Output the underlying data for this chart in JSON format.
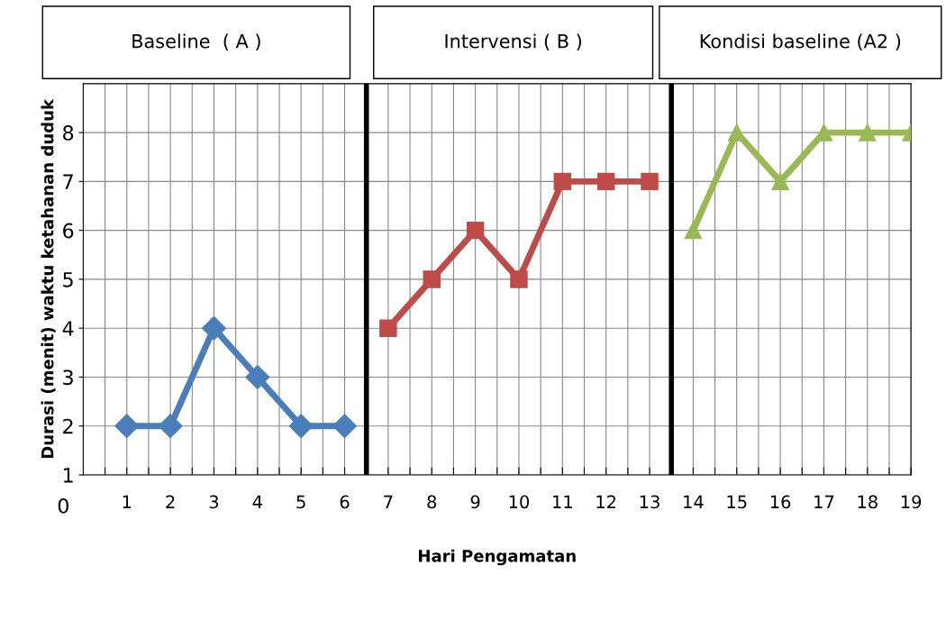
{
  "chart_data": {
    "type": "line",
    "xlabel": "Hari Pengamatan",
    "ylabel": "Durasi (menit) waktu ketahanan duduk",
    "series": [
      {
        "color": "#4a7ebb",
        "marker": "diamond",
        "x": [
          1,
          2,
          3,
          4,
          5,
          6
        ],
        "values": [
          2,
          2,
          4,
          3,
          2,
          2
        ]
      },
      {
        "color": "#be4b48",
        "marker": "square",
        "x": [
          7,
          8,
          9,
          10,
          11,
          12,
          13
        ],
        "values": [
          4,
          5,
          6,
          5,
          7,
          7,
          7
        ]
      },
      {
        "color": "#98b954",
        "marker": "triangle",
        "x": [
          14,
          15,
          16,
          17,
          18,
          19
        ],
        "values": [
          6,
          8,
          7,
          8,
          8,
          8
        ]
      }
    ],
    "xlim": [
      0,
      19
    ],
    "xticks": [
      {
        "value": 0.5,
        "label": null
      },
      1,
      {
        "value": 1.5,
        "label": null
      },
      2,
      {
        "value": 2.5,
        "label": null
      },
      3,
      {
        "value": 3.5,
        "label": null
      },
      4,
      {
        "value": 4.5,
        "label": null
      },
      5,
      {
        "value": 5.5,
        "label": null
      },
      6,
      7,
      {
        "value": 7.5,
        "label": null
      },
      8,
      {
        "value": 8.5,
        "label": null
      },
      9,
      {
        "value": 9.5,
        "label": null
      },
      10,
      {
        "value": 10.5,
        "label": null
      },
      11,
      {
        "value": 11.5,
        "label": null
      },
      12,
      {
        "value": 12.5,
        "label": null
      },
      13,
      14,
      {
        "value": 14.5,
        "label": null
      },
      15,
      {
        "value": 15.5,
        "label": null
      },
      16,
      {
        "value": 16.5,
        "label": null
      },
      17,
      {
        "value": 17.5,
        "label": null
      },
      18,
      {
        "value": 18.5,
        "label": null
      },
      19
    ],
    "ylim": [
      1,
      9
    ],
    "yticks": [
      1,
      2,
      3,
      4,
      5,
      6,
      7,
      8
    ],
    "grid": true,
    "line_style": "solid",
    "ref_lines": [
      {
        "axis": "x",
        "value": 6.5,
        "color": "#000000"
      },
      {
        "axis": "x",
        "value": 13.5,
        "color": "#000000"
      }
    ],
    "annotations": [
      "Baseline  ( A )",
      "Intervensi ( B )",
      "Kondisi baseline (A2 )",
      "0"
    ]
  }
}
